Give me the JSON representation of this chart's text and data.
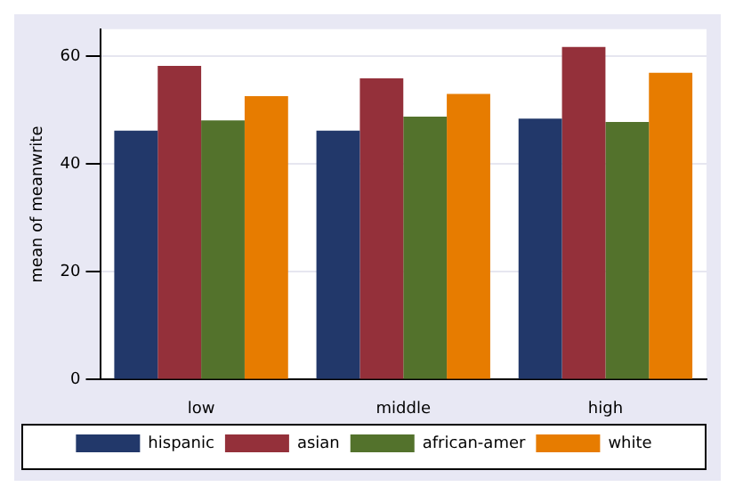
{
  "chart_data": {
    "type": "bar",
    "ylabel": "mean of meanwrite",
    "categories": [
      "low",
      "middle",
      "high"
    ],
    "series": [
      {
        "name": "hispanic",
        "color": "#22386a",
        "values": [
          46.2,
          46.2,
          48.4
        ]
      },
      {
        "name": "asian",
        "color": "#94303a",
        "values": [
          58.2,
          55.9,
          61.7
        ]
      },
      {
        "name": "african-amer",
        "color": "#53722c",
        "values": [
          48.1,
          48.8,
          47.8
        ]
      },
      {
        "name": "white",
        "color": "#e77c00",
        "values": [
          52.6,
          53.0,
          56.9
        ]
      }
    ],
    "ylim": [
      0,
      65
    ],
    "yticks": [
      0,
      20,
      40,
      60
    ],
    "grid": "y",
    "legend": "bottom"
  }
}
